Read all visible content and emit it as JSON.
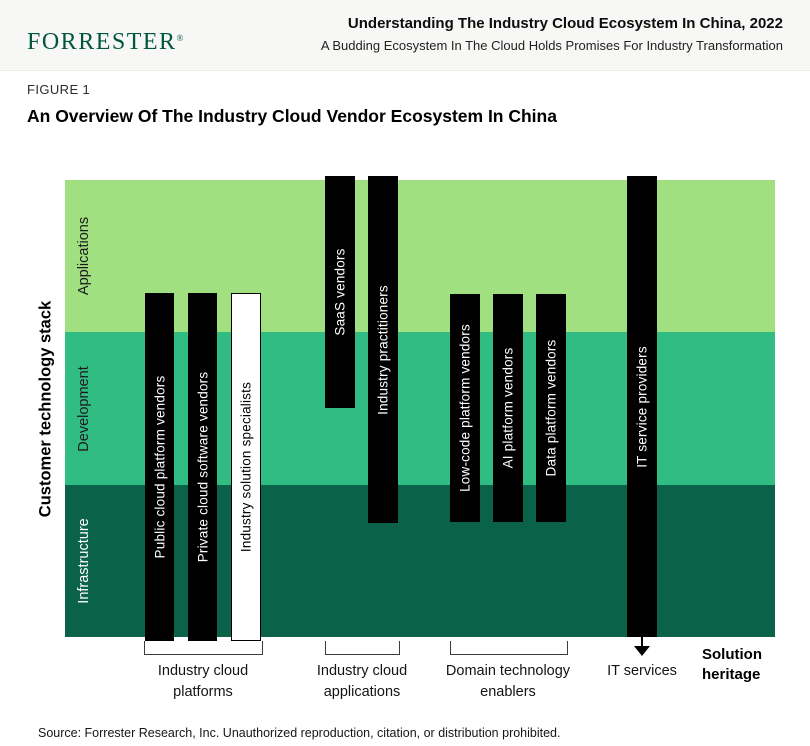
{
  "header": {
    "logo": "FORRESTER",
    "registered_mark": "®",
    "report_title": "Understanding The Industry Cloud Ecosystem In China, 2022",
    "report_subtitle": "A Budding Ecosystem In The Cloud Holds Promises For Industry Transformation"
  },
  "figure": {
    "label": "FIGURE 1",
    "title": "An Overview Of The Industry Cloud Vendor Ecosystem In China"
  },
  "chart_data": {
    "type": "diagram",
    "description": "Vertical vendor-category bars overlaid on a three-layer customer technology stack; horizontal position indicates solution heritage",
    "y_axis_label": "Customer technology stack",
    "x_axis_label": "Solution heritage",
    "layers": [
      {
        "label": "Applications",
        "color": "#a0e080",
        "text_color": "#1b1b1b"
      },
      {
        "label": "Development",
        "color": "#30bc83",
        "text_color": "#1b1b1b"
      },
      {
        "label": "Infrastructure",
        "color": "#0a6349",
        "text_color": "#ffffff"
      }
    ],
    "bars": [
      {
        "label": "Public cloud platform vendors",
        "group": "Industry cloud platforms",
        "spans": "Development–Infrastructure",
        "style": "black"
      },
      {
        "label": "Private cloud software vendors",
        "group": "Industry cloud platforms",
        "spans": "Development–Infrastructure",
        "style": "black"
      },
      {
        "label": "Industry solution specialists",
        "group": "Industry cloud platforms",
        "spans": "Development–Infrastructure",
        "style": "white-outline"
      },
      {
        "label": "SaaS vendors",
        "group": "Industry cloud applications",
        "spans": "Applications–Development",
        "style": "black"
      },
      {
        "label": "Industry practitioners",
        "group": "Industry cloud applications",
        "spans": "Applications–Infrastructure (upper)",
        "style": "black"
      },
      {
        "label": "Low-code platform vendors",
        "group": "Domain technology enablers",
        "spans": "Development–Infrastructure (upper)",
        "style": "black"
      },
      {
        "label": "AI platform vendors",
        "group": "Domain technology enablers",
        "spans": "Development–Infrastructure (upper)",
        "style": "black"
      },
      {
        "label": "Data platform vendors",
        "group": "Domain technology enablers",
        "spans": "Development–Infrastructure (upper)",
        "style": "black"
      },
      {
        "label": "IT service providers",
        "group": "IT services",
        "spans": "Applications–Infrastructure",
        "style": "black"
      }
    ],
    "groups": [
      {
        "line1": "Industry cloud",
        "line2": "platforms"
      },
      {
        "line1": "Industry cloud",
        "line2": "applications"
      },
      {
        "line1": "Domain technology",
        "line2": "enablers"
      },
      {
        "line1": "IT services",
        "line2": ""
      }
    ],
    "heritage_label": {
      "line1": "Solution",
      "line2": "heritage"
    },
    "colors": {
      "bar": "#000000",
      "bar_text": "#ffffff",
      "brand_green": "#00563f"
    }
  },
  "source": "Source: Forrester Research, Inc. Unauthorized reproduction, citation, or distribution prohibited."
}
